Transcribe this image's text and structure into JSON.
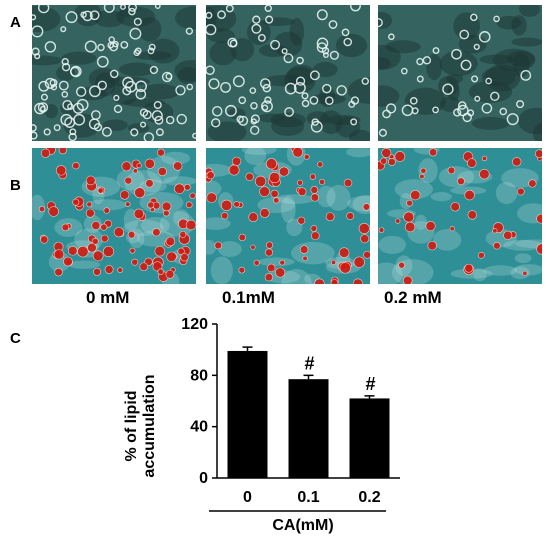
{
  "figure": {
    "label_a": "A",
    "label_b": "B",
    "label_c": "C",
    "concentrations": [
      "0 mM",
      "0.1mM",
      "0.2 mM"
    ],
    "colors": {
      "row_a_background": "#35635f",
      "row_a_cell": "#e6f4f2",
      "row_b_background": "#2f8f96",
      "row_b_cell": "#d01a12"
    }
  },
  "chart_data": {
    "type": "bar",
    "categories": [
      "0",
      "0.1",
      "0.2"
    ],
    "values": [
      99,
      77,
      62
    ],
    "errors": [
      3,
      3,
      2
    ],
    "annotations": [
      "",
      "#",
      "#"
    ],
    "ylabel_line1": "% of lipid",
    "ylabel_line2": "accumulation",
    "xlabel": "CA(mM)",
    "yticks": [
      0,
      40,
      80,
      120
    ],
    "ylim": [
      0,
      120
    ],
    "grid": false,
    "bar_color": "#000000"
  }
}
